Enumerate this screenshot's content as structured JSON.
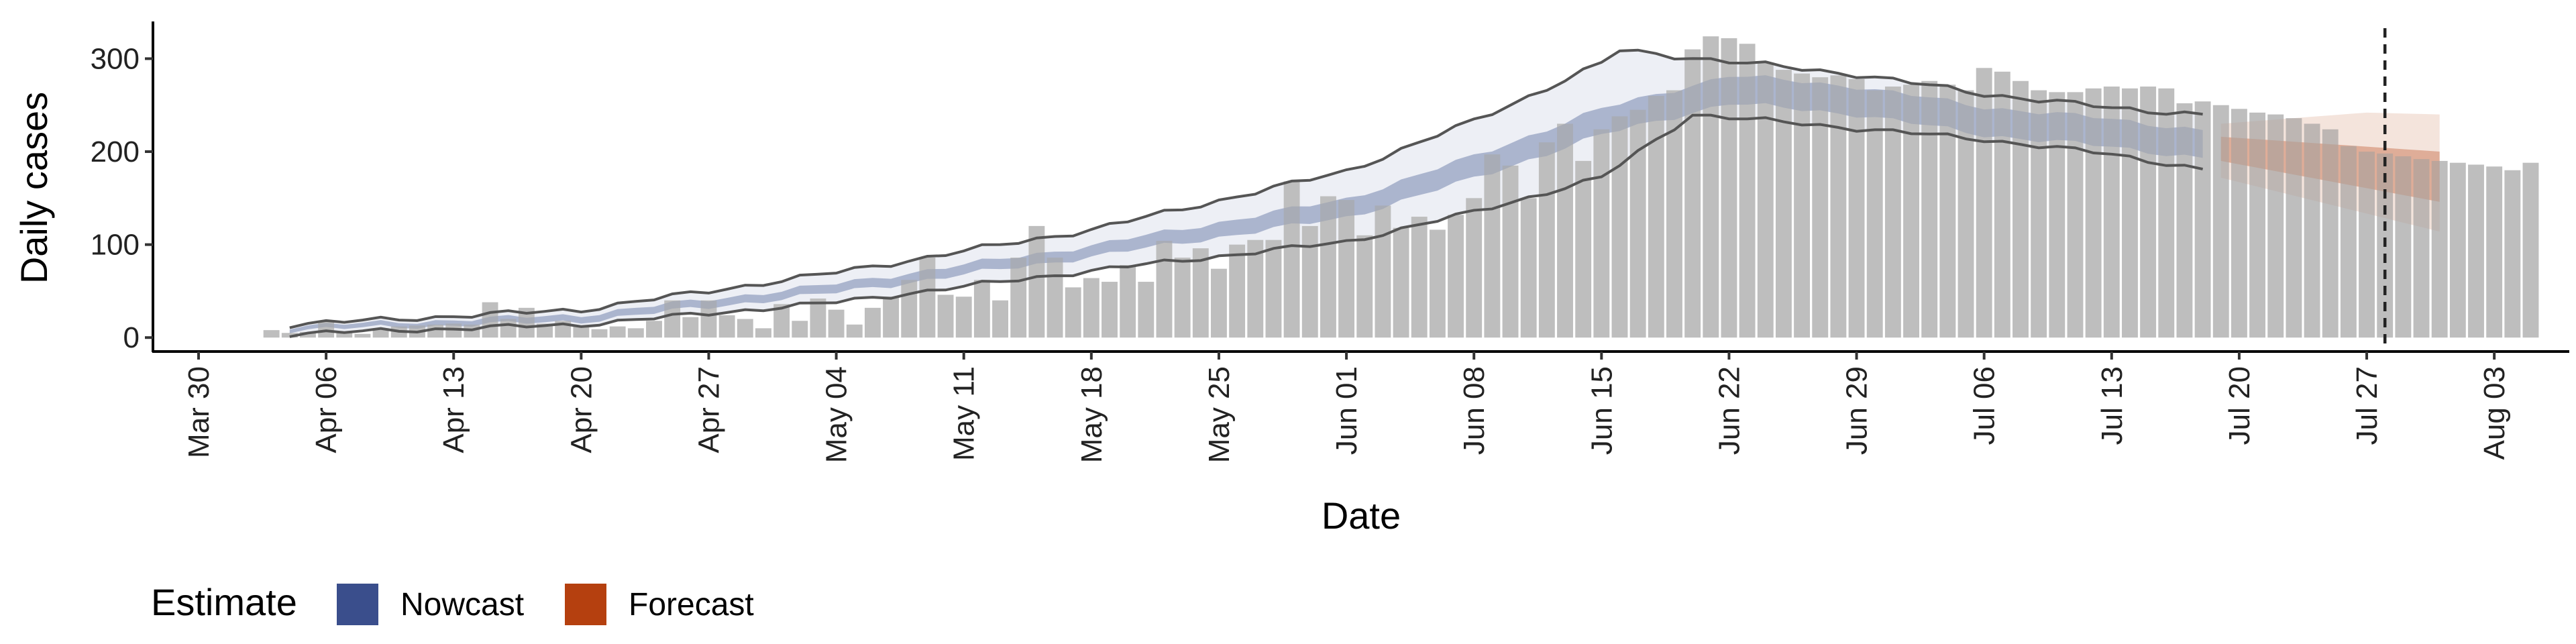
{
  "chart_data": {
    "type": "bar",
    "xlabel": "Date",
    "ylabel": "Daily cases",
    "x_tick_labels": [
      "Mar 30",
      "Apr 06",
      "Apr 13",
      "Apr 20",
      "Apr 27",
      "May 04",
      "May 11",
      "May 18",
      "May 25",
      "Jun 01",
      "Jun 08",
      "Jun 15",
      "Jun 22",
      "Jun 29",
      "Jul 06",
      "Jul 13",
      "Jul 20",
      "Jul 27",
      "Aug 03"
    ],
    "x_tick_dates": [
      "2020-03-30",
      "2020-04-06",
      "2020-04-13",
      "2020-04-20",
      "2020-04-27",
      "2020-05-04",
      "2020-05-11",
      "2020-05-18",
      "2020-05-25",
      "2020-06-01",
      "2020-06-08",
      "2020-06-15",
      "2020-06-22",
      "2020-06-29",
      "2020-07-06",
      "2020-07-13",
      "2020-07-20",
      "2020-07-27",
      "2020-08-03"
    ],
    "x_range": [
      "2020-03-30",
      "2020-08-05"
    ],
    "y_ticks": [
      0,
      100,
      200,
      300
    ],
    "ylim": [
      -15,
      340
    ],
    "grid": false,
    "legend_placement": "bottom-left",
    "legend": {
      "title": "Estimate",
      "entries": [
        {
          "label": "Nowcast",
          "color": "#3A4E8C"
        },
        {
          "label": "Forecast",
          "color": "#B5400F"
        }
      ]
    },
    "vline_date": "2020-07-28",
    "colors": {
      "bar": "#BEBEBE",
      "nowcast": "#3A4E8C",
      "forecast": "#B5400F",
      "outline": "#555555",
      "vline": "#222222"
    },
    "cases": {
      "start_date": "2020-04-03",
      "values": [
        8,
        5,
        6,
        18,
        6,
        4,
        10,
        12,
        13,
        14,
        15,
        14,
        38,
        20,
        32,
        15,
        18,
        12,
        9,
        12,
        10,
        18,
        40,
        22,
        40,
        24,
        20,
        10,
        36,
        18,
        42,
        30,
        14,
        32,
        44,
        62,
        86,
        46,
        44,
        62,
        40,
        86,
        120,
        86,
        54,
        64,
        60,
        78,
        60,
        104,
        86,
        96,
        74,
        100,
        105,
        105,
        168,
        120,
        152,
        148,
        110,
        142,
        118,
        130,
        116,
        132,
        150,
        197,
        185,
        150,
        210,
        230,
        190,
        224,
        238,
        245,
        260,
        266,
        310,
        324,
        322,
        316,
        296,
        288,
        284,
        280,
        282,
        278,
        266,
        270,
        272,
        276,
        272,
        266,
        290,
        286,
        276,
        266,
        264,
        264,
        268,
        270,
        268,
        270,
        268,
        252,
        254,
        250,
        246,
        242,
        240,
        236,
        230,
        224,
        206,
        200,
        198,
        195,
        192,
        190,
        188,
        186,
        184,
        180,
        188
      ]
    },
    "nowcast": {
      "start_date": "2020-04-04",
      "end_date": "2020-07-18",
      "median_points": [
        [
          "2020-04-04",
          10
        ],
        [
          "2020-04-20",
          21
        ],
        [
          "2020-05-04",
          53
        ],
        [
          "2020-05-18",
          93
        ],
        [
          "2020-06-01",
          139
        ],
        [
          "2020-06-08",
          183
        ],
        [
          "2020-06-15",
          232
        ],
        [
          "2020-06-22",
          267
        ],
        [
          "2020-06-29",
          255
        ],
        [
          "2020-07-06",
          233
        ],
        [
          "2020-07-13",
          220
        ],
        [
          "2020-07-18",
          208
        ]
      ],
      "inner_half_width_points": [
        [
          "2020-04-04",
          2
        ],
        [
          "2020-05-18",
          6
        ],
        [
          "2020-06-15",
          14
        ],
        [
          "2020-06-22",
          15
        ],
        [
          "2020-07-18",
          15
        ]
      ],
      "outer_upper_points": [
        [
          "2020-04-04",
          14
        ],
        [
          "2020-04-20",
          30
        ],
        [
          "2020-05-04",
          70
        ],
        [
          "2020-05-18",
          116
        ],
        [
          "2020-06-01",
          179
        ],
        [
          "2020-06-08",
          233
        ],
        [
          "2020-06-15",
          295
        ],
        [
          "2020-06-16",
          309
        ],
        [
          "2020-06-22",
          297
        ],
        [
          "2020-06-29",
          283
        ],
        [
          "2020-07-06",
          262
        ],
        [
          "2020-07-13",
          247
        ],
        [
          "2020-07-18",
          240
        ]
      ],
      "outer_lower_points": [
        [
          "2020-04-04",
          4
        ],
        [
          "2020-04-20",
          14
        ],
        [
          "2020-05-04",
          38
        ],
        [
          "2020-05-18",
          72
        ],
        [
          "2020-06-01",
          103
        ],
        [
          "2020-06-08",
          135
        ],
        [
          "2020-06-15",
          172
        ],
        [
          "2020-06-20",
          240
        ],
        [
          "2020-06-29",
          225
        ],
        [
          "2020-07-06",
          213
        ],
        [
          "2020-07-13",
          197
        ],
        [
          "2020-07-18",
          181
        ]
      ]
    },
    "forecast": {
      "start_date": "2020-07-19",
      "end_date": "2020-07-31",
      "median_points": [
        [
          "2020-07-19",
          203
        ],
        [
          "2020-07-25",
          187
        ],
        [
          "2020-07-31",
          177
        ]
      ],
      "inner_upper_points": [
        [
          "2020-07-19",
          216
        ],
        [
          "2020-07-31",
          200
        ]
      ],
      "inner_lower_points": [
        [
          "2020-07-19",
          190
        ],
        [
          "2020-07-31",
          146
        ]
      ],
      "outer_upper_points": [
        [
          "2020-07-19",
          230
        ],
        [
          "2020-07-27",
          242
        ],
        [
          "2020-07-31",
          240
        ]
      ],
      "outer_lower_points": [
        [
          "2020-07-19",
          172
        ],
        [
          "2020-07-31",
          114
        ]
      ]
    }
  }
}
